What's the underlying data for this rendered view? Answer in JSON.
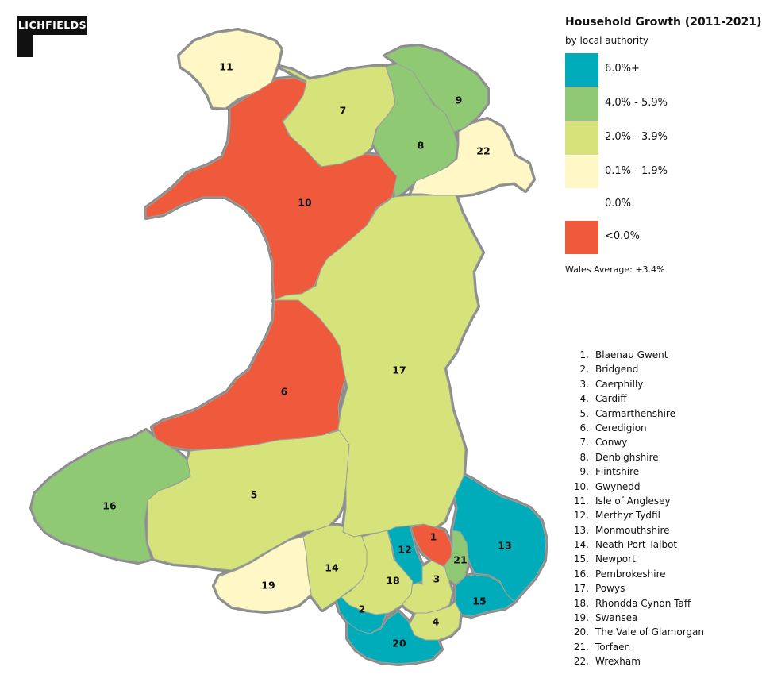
{
  "logo": {
    "text": "LICHFIELDS"
  },
  "legend": {
    "title": "Household Growth (2011-2021)",
    "subtitle": "by local authority",
    "classes": [
      {
        "label": "6.0%+",
        "color": "#00acb9"
      },
      {
        "label": "4.0% - 5.9%",
        "color": "#8fc974"
      },
      {
        "label": "2.0% - 3.9%",
        "color": "#d6e27a"
      },
      {
        "label": "0.1% - 1.9%",
        "color": "#fff8c6"
      },
      {
        "label": "0.0%",
        "color": "#ffffff"
      },
      {
        "label": "<0.0%",
        "color": "#f05a3c"
      }
    ],
    "average": "Wales Average: +3.4%"
  },
  "authorities": [
    {
      "num": "1",
      "name": "Blaenau Gwent",
      "class": 5
    },
    {
      "num": "2",
      "name": "Bridgend",
      "class": 0
    },
    {
      "num": "3",
      "name": "Caerphilly",
      "class": 2
    },
    {
      "num": "4",
      "name": "Cardiff",
      "class": 2
    },
    {
      "num": "5",
      "name": "Carmarthenshire",
      "class": 2
    },
    {
      "num": "6",
      "name": "Ceredigion",
      "class": 5
    },
    {
      "num": "7",
      "name": "Conwy",
      "class": 2
    },
    {
      "num": "8",
      "name": "Denbighshire",
      "class": 1
    },
    {
      "num": "9",
      "name": "Flintshire",
      "class": 1
    },
    {
      "num": "10",
      "name": "Gwynedd",
      "class": 5
    },
    {
      "num": "11",
      "name": "Isle of Anglesey",
      "class": 3
    },
    {
      "num": "12",
      "name": "Merthyr Tydfil",
      "class": 0
    },
    {
      "num": "13",
      "name": "Monmouthshire",
      "class": 0
    },
    {
      "num": "14",
      "name": "Neath Port Talbot",
      "class": 2
    },
    {
      "num": "15",
      "name": "Newport",
      "class": 0
    },
    {
      "num": "16",
      "name": "Pembrokeshire",
      "class": 1
    },
    {
      "num": "17",
      "name": "Powys",
      "class": 2
    },
    {
      "num": "18",
      "name": "Rhondda Cynon Taff",
      "class": 2
    },
    {
      "num": "19",
      "name": "Swansea",
      "class": 3
    },
    {
      "num": "20",
      "name": "The Vale of Glamorgan",
      "class": 0
    },
    {
      "num": "21",
      "name": "Torfaen",
      "class": 1
    },
    {
      "num": "22",
      "name": "Wrexham",
      "class": 3
    }
  ]
}
